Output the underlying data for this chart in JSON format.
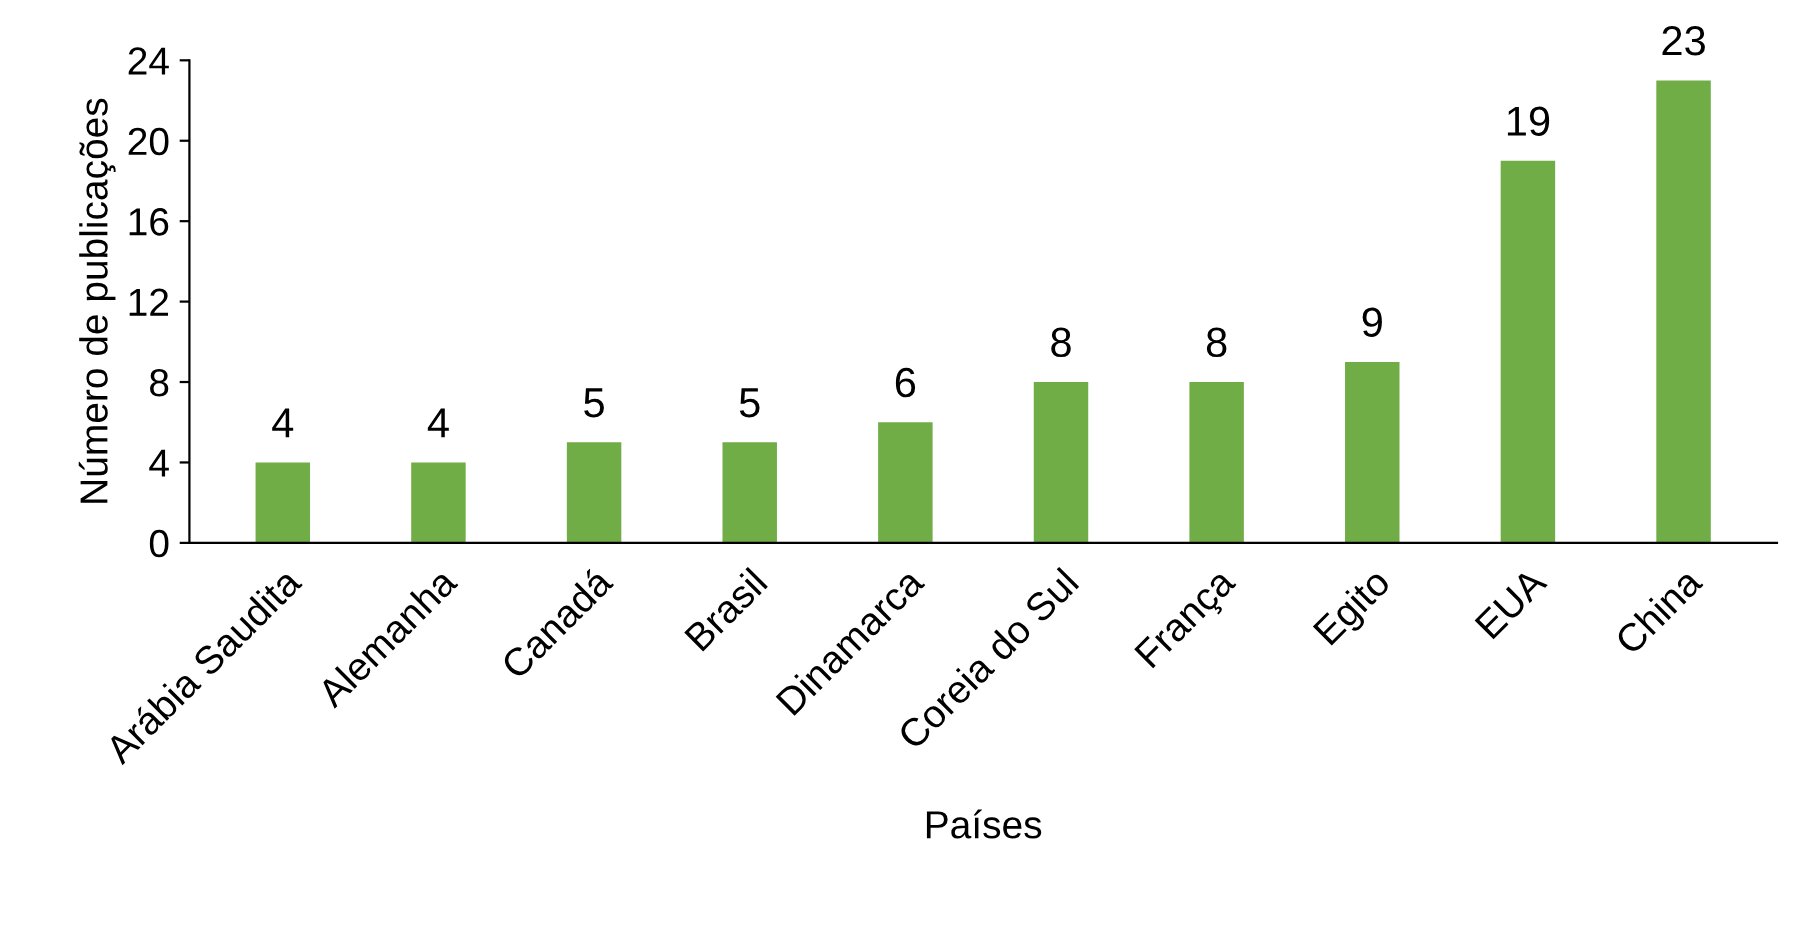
{
  "chart_data": {
    "type": "bar",
    "xlabel": "Países",
    "ylabel": "Número de publicações",
    "categories": [
      "Arábia Saudita",
      "Alemanha",
      "Canadá",
      "Brasil",
      "Dinamarca",
      "Coreia do Sul",
      "França",
      "Egito",
      "EUA",
      "China"
    ],
    "values": [
      4,
      4,
      5,
      5,
      6,
      8,
      8,
      9,
      19,
      23
    ],
    "color": "#70ad47",
    "ylim": [
      0,
      24
    ],
    "yticks": [
      0,
      4,
      8,
      12,
      16,
      20,
      24
    ],
    "grid": false,
    "data_labels": true
  }
}
